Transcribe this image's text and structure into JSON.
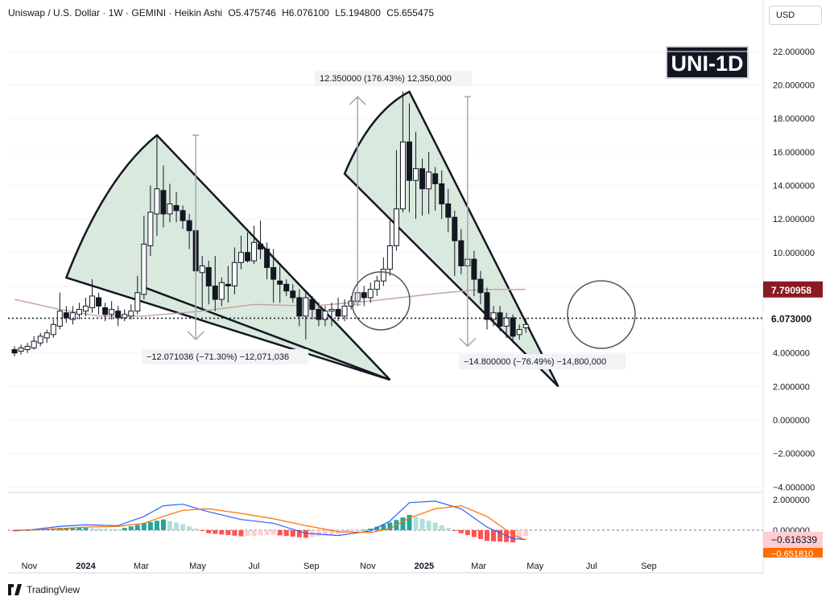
{
  "header": {
    "symbol": "Uniswap / U.S. Dollar · 1W · GEMINI · Heikin Ashi",
    "open": "O5.475746",
    "high": "H6.076100",
    "low": "L5.194800",
    "close": "C5.655475"
  },
  "currency": "USD",
  "badge": "UNI-1D",
  "footer": {
    "brand": "TradingView"
  },
  "colors": {
    "bull": "#131722",
    "bear": "#131722",
    "fan_fill": "#cfe3d6",
    "ma": "#c8a6a6",
    "macd_line": "#2962ff",
    "signal_line": "#ff6d00",
    "hist_pos_strong": "#26a69a",
    "hist_pos_weak": "#b2dfdb",
    "hist_neg_strong": "#ff5252",
    "hist_neg_weak": "#ffcdd2"
  },
  "chart_data": {
    "type": "candlestick",
    "price_axis": {
      "ticks": [
        "22.000000",
        "20.000000",
        "18.000000",
        "16.000000",
        "14.000000",
        "12.000000",
        "10.000000",
        "8.000000",
        "6.000000",
        "4.000000",
        "2.000000",
        "0.000000",
        "−2.000000",
        "−4.000000"
      ],
      "ylim": [
        -4,
        23
      ]
    },
    "time_axis": {
      "ticks": [
        "Nov",
        "2024",
        "Mar",
        "May",
        "Jul",
        "Sep",
        "Nov",
        "2025",
        "Mar",
        "May",
        "Jul",
        "Sep"
      ]
    },
    "markers": {
      "ma_value": "7.790958",
      "last_price": "6.073000"
    },
    "annotations": {
      "measure_up": "12.350000 (176.43%) 12,350,000",
      "measure_down_1": "−12.071036 (−71.30%) −12,071,036",
      "measure_down_2": "−14.800000 (−76.49%) −14,800,000"
    },
    "macd_axis": {
      "ticks": [
        "2.000000",
        "0.000000"
      ],
      "macd_value": "−0.616339",
      "signal_value": "−0.651810"
    },
    "candles": [
      {
        "date": "2023-10-16",
        "o": 4.2,
        "h": 4.4,
        "l": 3.8,
        "c": 4.0
      },
      {
        "date": "2023-10-23",
        "o": 4.1,
        "h": 4.5,
        "l": 3.9,
        "c": 4.3
      },
      {
        "date": "2023-10-30",
        "o": 4.2,
        "h": 4.6,
        "l": 4.0,
        "c": 4.4
      },
      {
        "date": "2023-11-06",
        "o": 4.3,
        "h": 5.0,
        "l": 4.2,
        "c": 4.7
      },
      {
        "date": "2023-11-13",
        "o": 4.6,
        "h": 5.2,
        "l": 4.4,
        "c": 5.0
      },
      {
        "date": "2023-11-20",
        "o": 4.9,
        "h": 5.4,
        "l": 4.6,
        "c": 5.2
      },
      {
        "date": "2023-11-27",
        "o": 5.1,
        "h": 6.0,
        "l": 4.9,
        "c": 5.7
      },
      {
        "date": "2023-12-04",
        "o": 5.6,
        "h": 7.6,
        "l": 5.4,
        "c": 6.5
      },
      {
        "date": "2023-12-11",
        "o": 6.4,
        "h": 6.8,
        "l": 5.8,
        "c": 6.1
      },
      {
        "date": "2023-12-18",
        "o": 6.0,
        "h": 6.8,
        "l": 5.7,
        "c": 6.4
      },
      {
        "date": "2023-12-25",
        "o": 6.3,
        "h": 7.0,
        "l": 6.0,
        "c": 6.6
      },
      {
        "date": "2024-01-01",
        "o": 6.5,
        "h": 7.3,
        "l": 6.2,
        "c": 6.8
      },
      {
        "date": "2024-01-08",
        "o": 6.7,
        "h": 8.4,
        "l": 6.4,
        "c": 7.4
      },
      {
        "date": "2024-01-15",
        "o": 7.3,
        "h": 7.6,
        "l": 6.3,
        "c": 6.8
      },
      {
        "date": "2024-01-22",
        "o": 6.7,
        "h": 7.0,
        "l": 5.9,
        "c": 6.3
      },
      {
        "date": "2024-01-29",
        "o": 6.3,
        "h": 7.1,
        "l": 6.0,
        "c": 6.6
      },
      {
        "date": "2024-02-05",
        "o": 6.5,
        "h": 6.8,
        "l": 5.6,
        "c": 6.1
      },
      {
        "date": "2024-02-12",
        "o": 6.1,
        "h": 6.6,
        "l": 5.9,
        "c": 6.3
      },
      {
        "date": "2024-02-19",
        "o": 6.2,
        "h": 6.9,
        "l": 6.0,
        "c": 6.5
      },
      {
        "date": "2024-02-26",
        "o": 6.5,
        "h": 8.6,
        "l": 6.3,
        "c": 7.6
      },
      {
        "date": "2024-03-04",
        "o": 7.5,
        "h": 12.2,
        "l": 7.2,
        "c": 10.5
      },
      {
        "date": "2024-03-11",
        "o": 10.4,
        "h": 14.0,
        "l": 9.8,
        "c": 12.4
      },
      {
        "date": "2024-03-18",
        "o": 12.3,
        "h": 17.0,
        "l": 11.0,
        "c": 13.8
      },
      {
        "date": "2024-03-25",
        "o": 13.7,
        "h": 15.2,
        "l": 11.5,
        "c": 12.3
      },
      {
        "date": "2024-04-01",
        "o": 12.3,
        "h": 14.1,
        "l": 11.8,
        "c": 12.9
      },
      {
        "date": "2024-04-08",
        "o": 12.8,
        "h": 13.6,
        "l": 11.8,
        "c": 12.5
      },
      {
        "date": "2024-04-15",
        "o": 12.5,
        "h": 12.8,
        "l": 11.4,
        "c": 11.9
      },
      {
        "date": "2024-04-22",
        "o": 11.9,
        "h": 12.3,
        "l": 10.2,
        "c": 11.3
      },
      {
        "date": "2024-04-29",
        "o": 11.3,
        "h": 11.6,
        "l": 6.9,
        "c": 8.9
      },
      {
        "date": "2024-05-06",
        "o": 8.8,
        "h": 9.8,
        "l": 6.6,
        "c": 9.2
      },
      {
        "date": "2024-05-13",
        "o": 9.1,
        "h": 9.5,
        "l": 6.9,
        "c": 8.0
      },
      {
        "date": "2024-05-20",
        "o": 8.0,
        "h": 9.8,
        "l": 6.5,
        "c": 7.2
      },
      {
        "date": "2024-05-27",
        "o": 7.2,
        "h": 8.5,
        "l": 6.8,
        "c": 8.2
      },
      {
        "date": "2024-06-03",
        "o": 8.1,
        "h": 9.2,
        "l": 7.0,
        "c": 8.0
      },
      {
        "date": "2024-06-10",
        "o": 8.0,
        "h": 10.3,
        "l": 7.5,
        "c": 9.4
      },
      {
        "date": "2024-06-17",
        "o": 9.4,
        "h": 11.0,
        "l": 9.0,
        "c": 10.0
      },
      {
        "date": "2024-06-24",
        "o": 10.0,
        "h": 11.2,
        "l": 9.4,
        "c": 9.5
      },
      {
        "date": "2024-07-01",
        "o": 9.5,
        "h": 11.6,
        "l": 9.3,
        "c": 10.6
      },
      {
        "date": "2024-07-08",
        "o": 10.5,
        "h": 11.9,
        "l": 9.6,
        "c": 10.2
      },
      {
        "date": "2024-07-15",
        "o": 10.2,
        "h": 10.6,
        "l": 8.4,
        "c": 9.1
      },
      {
        "date": "2024-07-22",
        "o": 9.1,
        "h": 10.2,
        "l": 7.0,
        "c": 8.4
      },
      {
        "date": "2024-07-29",
        "o": 8.3,
        "h": 9.2,
        "l": 7.0,
        "c": 8.1
      },
      {
        "date": "2024-08-05",
        "o": 8.1,
        "h": 8.4,
        "l": 7.4,
        "c": 7.7
      },
      {
        "date": "2024-08-12",
        "o": 7.7,
        "h": 8.1,
        "l": 7.0,
        "c": 7.3
      },
      {
        "date": "2024-08-19",
        "o": 7.3,
        "h": 7.8,
        "l": 5.6,
        "c": 6.2
      },
      {
        "date": "2024-08-26",
        "o": 6.2,
        "h": 7.6,
        "l": 4.8,
        "c": 7.3
      },
      {
        "date": "2024-09-02",
        "o": 7.2,
        "h": 7.4,
        "l": 6.0,
        "c": 6.6
      },
      {
        "date": "2024-09-09",
        "o": 6.6,
        "h": 7.0,
        "l": 5.6,
        "c": 6.0
      },
      {
        "date": "2024-09-16",
        "o": 6.0,
        "h": 6.8,
        "l": 5.6,
        "c": 6.5
      },
      {
        "date": "2024-09-23",
        "o": 6.5,
        "h": 7.0,
        "l": 5.6,
        "c": 6.6
      },
      {
        "date": "2024-09-30",
        "o": 6.6,
        "h": 7.3,
        "l": 5.9,
        "c": 6.2
      },
      {
        "date": "2024-10-07",
        "o": 6.2,
        "h": 7.2,
        "l": 5.9,
        "c": 6.8
      },
      {
        "date": "2024-10-14",
        "o": 6.8,
        "h": 7.4,
        "l": 6.6,
        "c": 7.1
      },
      {
        "date": "2024-10-21",
        "o": 7.1,
        "h": 8.3,
        "l": 6.8,
        "c": 7.6
      },
      {
        "date": "2024-10-28",
        "o": 7.6,
        "h": 8.0,
        "l": 6.8,
        "c": 7.3
      },
      {
        "date": "2024-11-04",
        "o": 7.3,
        "h": 8.2,
        "l": 7.0,
        "c": 7.8
      },
      {
        "date": "2024-11-11",
        "o": 7.8,
        "h": 8.6,
        "l": 7.4,
        "c": 8.3
      },
      {
        "date": "2024-11-18",
        "o": 8.3,
        "h": 9.7,
        "l": 8.0,
        "c": 9.0
      },
      {
        "date": "2024-11-25",
        "o": 9.0,
        "h": 11.9,
        "l": 8.6,
        "c": 10.4
      },
      {
        "date": "2024-12-02",
        "o": 10.4,
        "h": 16.1,
        "l": 10.1,
        "c": 12.6
      },
      {
        "date": "2024-12-09",
        "o": 12.6,
        "h": 19.6,
        "l": 12.4,
        "c": 16.6
      },
      {
        "date": "2024-12-16",
        "o": 16.6,
        "h": 18.9,
        "l": 12.4,
        "c": 14.3
      },
      {
        "date": "2024-12-23",
        "o": 14.3,
        "h": 17.2,
        "l": 12.0,
        "c": 15.0
      },
      {
        "date": "2024-12-30",
        "o": 15.0,
        "h": 15.6,
        "l": 12.2,
        "c": 13.8
      },
      {
        "date": "2025-01-06",
        "o": 13.8,
        "h": 16.0,
        "l": 12.3,
        "c": 14.8
      },
      {
        "date": "2025-01-13",
        "o": 14.7,
        "h": 15.1,
        "l": 12.5,
        "c": 14.1
      },
      {
        "date": "2025-01-20",
        "o": 14.1,
        "h": 14.9,
        "l": 12.0,
        "c": 12.9
      },
      {
        "date": "2025-01-27",
        "o": 12.9,
        "h": 13.8,
        "l": 11.2,
        "c": 12.1
      },
      {
        "date": "2025-02-03",
        "o": 12.1,
        "h": 12.5,
        "l": 8.6,
        "c": 10.7
      },
      {
        "date": "2025-02-10",
        "o": 10.7,
        "h": 11.4,
        "l": 8.7,
        "c": 9.2
      },
      {
        "date": "2025-02-17",
        "o": 9.2,
        "h": 10.3,
        "l": 8.7,
        "c": 9.6
      },
      {
        "date": "2025-02-24",
        "o": 9.6,
        "h": 10.1,
        "l": 7.4,
        "c": 8.4
      },
      {
        "date": "2025-03-03",
        "o": 8.4,
        "h": 8.9,
        "l": 6.9,
        "c": 7.6
      },
      {
        "date": "2025-03-10",
        "o": 7.6,
        "h": 7.9,
        "l": 5.4,
        "c": 6.0
      },
      {
        "date": "2025-03-17",
        "o": 6.0,
        "h": 6.8,
        "l": 5.6,
        "c": 6.4
      },
      {
        "date": "2025-03-24",
        "o": 6.4,
        "h": 6.8,
        "l": 5.3,
        "c": 5.6
      },
      {
        "date": "2025-03-31",
        "o": 5.6,
        "h": 6.4,
        "l": 4.9,
        "c": 6.1
      },
      {
        "date": "2025-04-07",
        "o": 6.1,
        "h": 6.3,
        "l": 4.6,
        "c": 5.0
      },
      {
        "date": "2025-04-14",
        "o": 5.1,
        "h": 5.7,
        "l": 4.8,
        "c": 5.4
      },
      {
        "date": "2025-04-21",
        "o": 5.5,
        "h": 6.1,
        "l": 5.2,
        "c": 5.7
      }
    ],
    "macd": [
      {
        "date": "2023-10-16",
        "m": -0.05,
        "s": 0.0,
        "h": -0.06
      },
      {
        "date": "2023-11-06",
        "m": 0.05,
        "s": 0.02,
        "h": 0.03
      },
      {
        "date": "2023-12-04",
        "m": 0.25,
        "s": 0.1,
        "h": 0.15
      },
      {
        "date": "2024-01-01",
        "m": 0.35,
        "s": 0.2,
        "h": 0.15
      },
      {
        "date": "2024-02-05",
        "m": 0.3,
        "s": 0.25,
        "h": 0.05
      },
      {
        "date": "2024-03-04",
        "m": 0.9,
        "s": 0.45,
        "h": 0.45
      },
      {
        "date": "2024-03-25",
        "m": 1.6,
        "s": 0.9,
        "h": 0.7
      },
      {
        "date": "2024-04-15",
        "m": 1.7,
        "s": 1.3,
        "h": 0.4
      },
      {
        "date": "2024-05-13",
        "m": 1.2,
        "s": 1.4,
        "h": -0.2
      },
      {
        "date": "2024-06-17",
        "m": 0.7,
        "s": 1.1,
        "h": -0.4
      },
      {
        "date": "2024-07-22",
        "m": 0.45,
        "s": 0.75,
        "h": -0.3
      },
      {
        "date": "2024-08-26",
        "m": -0.2,
        "s": 0.3,
        "h": -0.5
      },
      {
        "date": "2024-09-30",
        "m": -0.35,
        "s": -0.1,
        "h": -0.25
      },
      {
        "date": "2024-11-04",
        "m": -0.05,
        "s": -0.15,
        "h": 0.1
      },
      {
        "date": "2024-11-25",
        "m": 0.6,
        "s": 0.1,
        "h": 0.5
      },
      {
        "date": "2024-12-16",
        "m": 1.8,
        "s": 0.8,
        "h": 1.0
      },
      {
        "date": "2025-01-13",
        "m": 1.9,
        "s": 1.4,
        "h": 0.5
      },
      {
        "date": "2025-02-10",
        "m": 1.4,
        "s": 1.6,
        "h": -0.2
      },
      {
        "date": "2025-03-10",
        "m": 0.2,
        "s": 0.9,
        "h": -0.7
      },
      {
        "date": "2025-04-07",
        "m": -0.55,
        "s": -0.3,
        "h": -0.8
      },
      {
        "date": "2025-04-21",
        "m": -0.62,
        "s": -0.65,
        "h": -0.4
      }
    ],
    "ma": [
      {
        "date": "2023-10-16",
        "v": 7.2
      },
      {
        "date": "2023-12-04",
        "v": 6.6
      },
      {
        "date": "2024-01-15",
        "v": 6.2
      },
      {
        "date": "2024-03-04",
        "v": 6.2
      },
      {
        "date": "2024-05-06",
        "v": 6.5
      },
      {
        "date": "2024-07-01",
        "v": 6.9
      },
      {
        "date": "2024-09-02",
        "v": 6.8
      },
      {
        "date": "2024-11-04",
        "v": 7.1
      },
      {
        "date": "2025-01-06",
        "v": 7.5
      },
      {
        "date": "2025-03-03",
        "v": 7.8
      },
      {
        "date": "2025-04-21",
        "v": 7.79
      }
    ]
  }
}
